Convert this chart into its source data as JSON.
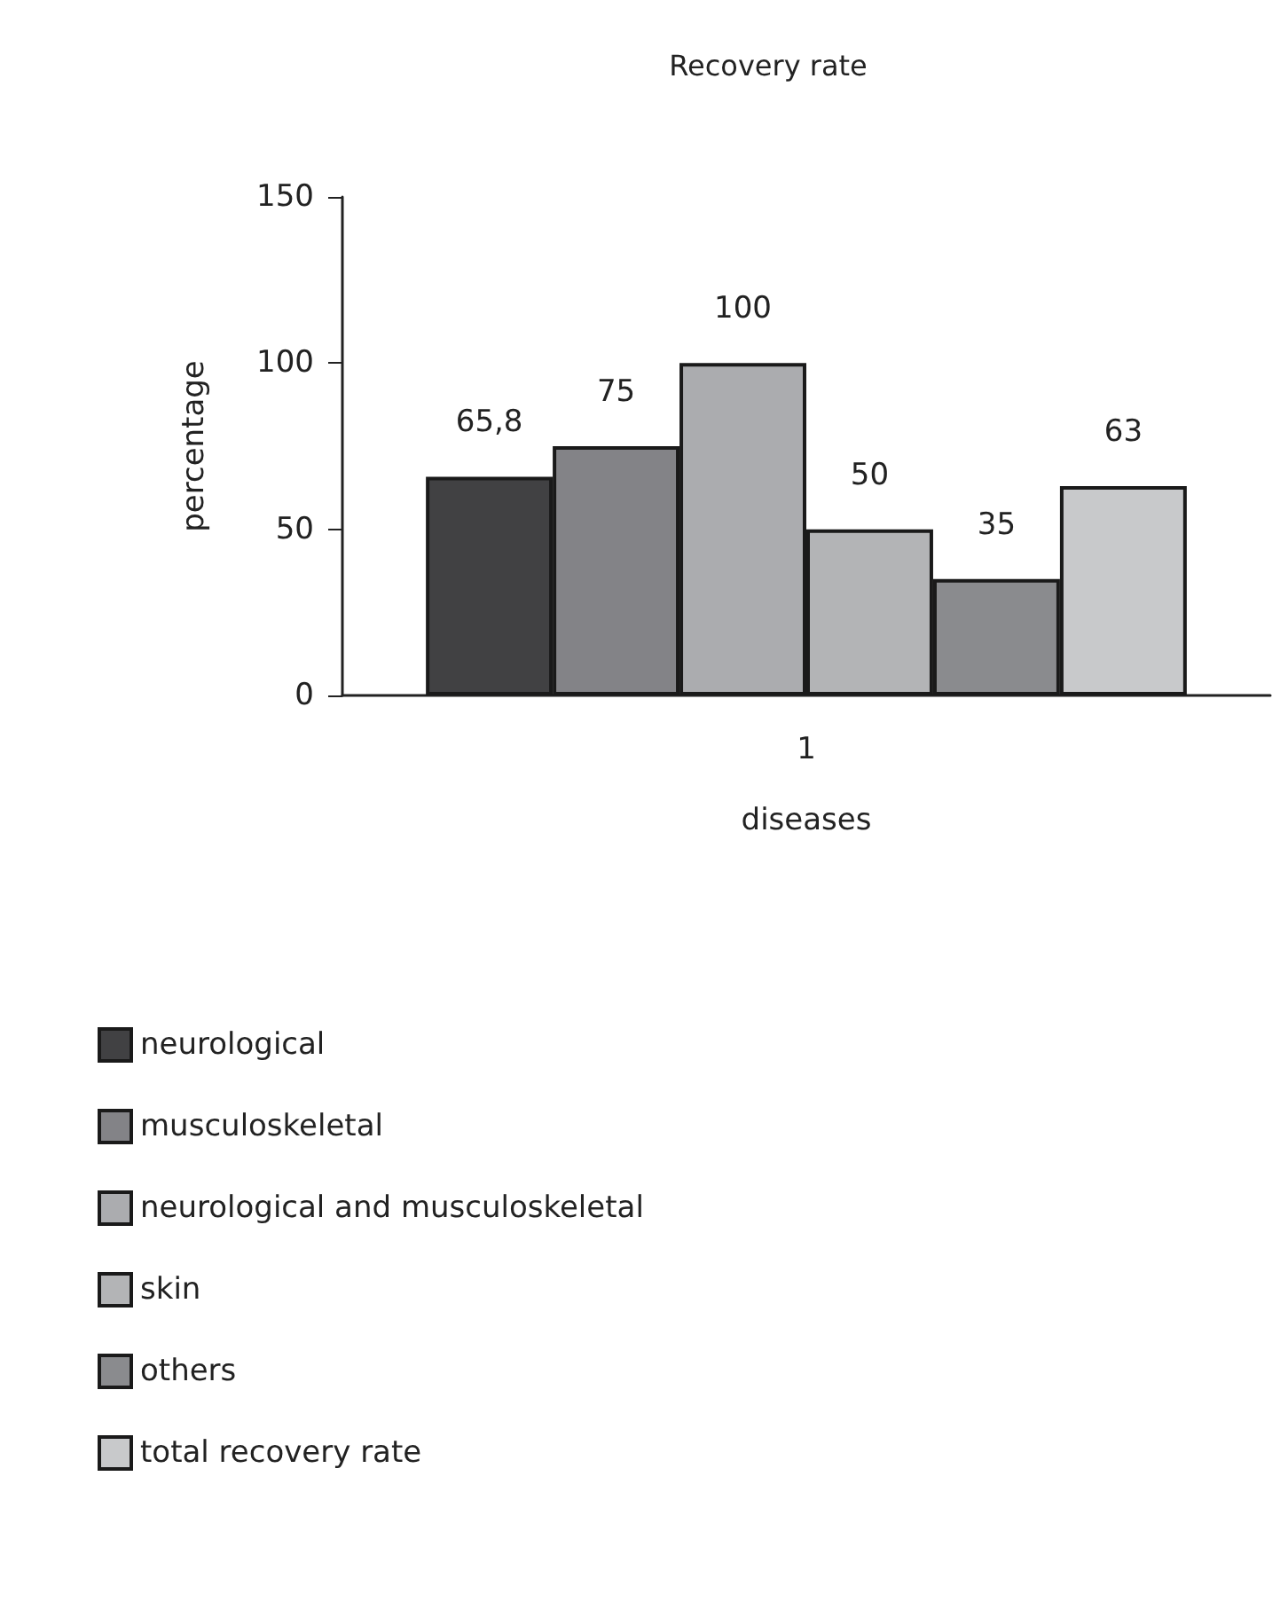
{
  "chart_data": {
    "type": "bar",
    "title": "Recovery rate",
    "xlabel": "diseases",
    "ylabel": "percentage",
    "categories": [
      "1"
    ],
    "ylim": [
      0,
      150
    ],
    "yticks": [
      0,
      50,
      100,
      150
    ],
    "grid": false,
    "legend": "bottom left",
    "series": [
      {
        "name": "neurological",
        "color": "#414143",
        "values": [
          65.8
        ],
        "value_labels": [
          "65,8"
        ]
      },
      {
        "name": "musculoskeletal",
        "color": "#838387",
        "values": [
          75
        ],
        "value_labels": [
          "75"
        ]
      },
      {
        "name": "neurological and musculoskeletal",
        "color": "#abacaf",
        "values": [
          100
        ],
        "value_labels": [
          "100"
        ]
      },
      {
        "name": "skin",
        "color": "#b3b4b6",
        "values": [
          50
        ],
        "value_labels": [
          "50"
        ]
      },
      {
        "name": "others",
        "color": "#8a8b8e",
        "values": [
          35
        ],
        "value_labels": [
          "35"
        ]
      },
      {
        "name": "total recovery rate",
        "color": "#c8c9cb",
        "values": [
          63
        ],
        "value_labels": [
          "63"
        ]
      }
    ]
  }
}
